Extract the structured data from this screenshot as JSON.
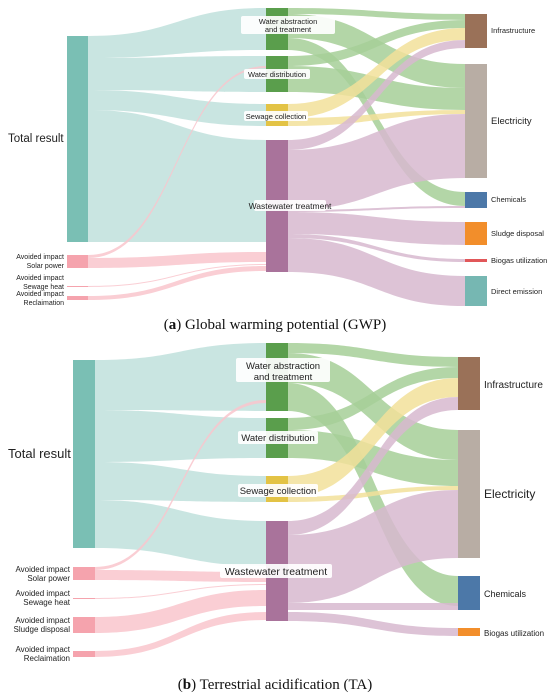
{
  "colors": {
    "total": "#7abfb4",
    "avoided": "#f5a3ad",
    "water_abstraction": "#5a9e4c",
    "water_distribution": "#5a9e4c",
    "sewage_collection": "#e3c345",
    "wastewater_treatment": "#a9739b",
    "infrastructure": "#9a7158",
    "electricity": "#b8ada4",
    "chemicals": "#4c78a8",
    "sludge_disposal": "#f28e2b",
    "biogas_utilization": "#e15759",
    "biogas_utilization_b": "#f28e2b",
    "direct_emission": "#76b7b2",
    "link_total": "#bfe0dc",
    "link_avoided": "#f9c6cc",
    "link_water": "#a6cf98",
    "link_sewage": "#f2e19a",
    "link_wastewater": "#d7b8cf"
  },
  "panels": [
    {
      "id": "a",
      "caption_letter": "a",
      "caption_text": " Global warming potential (GWP)",
      "sources": {
        "total": "Total result",
        "avoided_solar": [
          "Avoided impact",
          "Solar power"
        ],
        "avoided_heat": [
          "Avoided impact",
          "Sewage heat"
        ],
        "avoided_reclamation": [
          "Avoided impact",
          "Reclaimation"
        ]
      },
      "stages": {
        "water_abstraction": [
          "Water abstraction",
          "and treatment"
        ],
        "water_distribution": "Water distribution",
        "sewage_collection": "Sewage collection",
        "wastewater_treatment": "Wastewater treatment"
      },
      "targets": {
        "infrastructure": "Infrastructure",
        "electricity": "Electricity",
        "chemicals": "Chemicals",
        "sludge_disposal": "Sludge disposal",
        "biogas_utilization": "Biogas utilization",
        "direct_emission": "Direct emission"
      }
    },
    {
      "id": "b",
      "caption_letter": "b",
      "caption_text": " Terrestrial acidification (TA)",
      "sources": {
        "total": "Total result",
        "avoided_solar": [
          "Avoided impact",
          "Solar power"
        ],
        "avoided_heat": [
          "Avoided impact",
          "Sewage heat"
        ],
        "avoided_sludge": [
          "Avoided impact",
          "Sludge disposal"
        ],
        "avoided_reclamation": [
          "Avoided impact",
          "Reclaimation"
        ]
      },
      "stages": {
        "water_abstraction": [
          "Water abstraction",
          "and treatment"
        ],
        "water_distribution": "Water distribution",
        "sewage_collection": "Sewage collection",
        "wastewater_treatment": "Wastewater treatment"
      },
      "targets": {
        "infrastructure": "Infrastructure",
        "electricity": "Electricity",
        "chemicals": "Chemicals",
        "biogas_utilization": "Biogas utilization"
      }
    }
  ]
}
